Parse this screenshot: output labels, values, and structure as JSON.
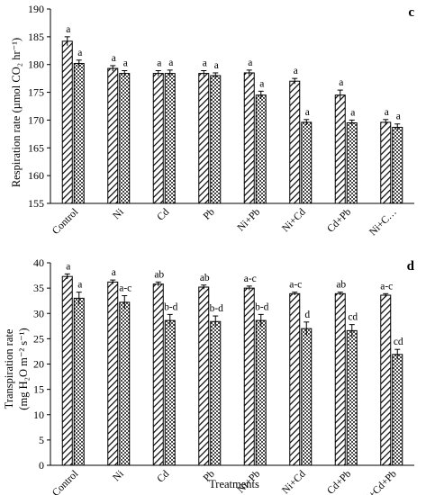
{
  "chart_data": [
    {
      "type": "bar",
      "panel_label": "c",
      "ylabel": "Respiration rate (µmol CO₂ hr⁻¹)",
      "xlabel": "",
      "ylim": [
        155,
        190
      ],
      "yticks": [
        155,
        160,
        165,
        170,
        175,
        180,
        185,
        190
      ],
      "categories": [
        "Control",
        "Ni",
        "Cd",
        "Pb",
        "Ni+Pb",
        "Ni+Cd",
        "Cd+Pb",
        "Ni+C…"
      ],
      "series": [
        {
          "pattern": "diagonal-hatch",
          "values": [
            184.2,
            179.3,
            178.4,
            178.4,
            178.5,
            177.0,
            174.5,
            169.6
          ],
          "errors": [
            0.8,
            0.5,
            0.5,
            0.5,
            0.5,
            0.5,
            0.9,
            0.5
          ],
          "labels": [
            "a",
            "a",
            "a",
            "a",
            "a",
            "a",
            "a",
            "a"
          ]
        },
        {
          "pattern": "dotted",
          "values": [
            180.2,
            178.4,
            178.4,
            178.0,
            174.5,
            169.6,
            169.5,
            168.7
          ],
          "errors": [
            0.6,
            0.5,
            0.6,
            0.5,
            0.7,
            0.5,
            0.5,
            0.6
          ],
          "labels": [
            "a",
            "a",
            "a",
            "a",
            "a",
            "a",
            "a",
            "a"
          ]
        }
      ]
    },
    {
      "type": "bar",
      "panel_label": "d",
      "ylabel_line1": "Transpiration rate",
      "ylabel_line2": "(mg H₂O m⁻² s⁻¹)",
      "xlabel": "Treatments",
      "ylim": [
        0,
        40
      ],
      "yticks": [
        0,
        5,
        10,
        15,
        20,
        25,
        30,
        35,
        40
      ],
      "categories": [
        "Control",
        "Ni",
        "Cd",
        "Pb",
        "Ni+Pb",
        "Ni+Cd",
        "Cd+Pb",
        "Ni+Cd+Pb"
      ],
      "series": [
        {
          "pattern": "diagonal-hatch",
          "values": [
            37.3,
            36.2,
            35.8,
            35.2,
            35.0,
            33.9,
            33.9,
            33.6
          ],
          "errors": [
            0.5,
            0.4,
            0.4,
            0.4,
            0.4,
            0.3,
            0.3,
            0.3
          ],
          "labels": [
            "a",
            "a",
            "ab",
            "ab",
            "a-c",
            "a-c",
            "ab",
            "a-c"
          ]
        },
        {
          "pattern": "dotted",
          "values": [
            33.0,
            32.2,
            28.6,
            28.4,
            28.6,
            27.0,
            26.6,
            21.9
          ],
          "errors": [
            1.2,
            1.3,
            1.2,
            1.1,
            1.2,
            1.3,
            1.2,
            1.0
          ],
          "labels": [
            "a",
            "a-c",
            "b-d",
            "b-d",
            "b-d",
            "d",
            "cd",
            "cd"
          ]
        }
      ]
    }
  ]
}
